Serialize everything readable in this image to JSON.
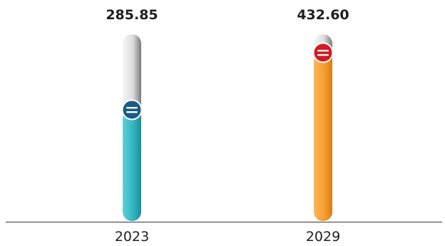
{
  "chart_data": {
    "type": "bar",
    "categories": [
      "2023",
      "2029"
    ],
    "values": [
      285.85,
      432.6
    ],
    "value_labels": [
      "285.85",
      "432.60"
    ],
    "ylim": [
      0,
      480
    ],
    "bar_colors": [
      "#2eb3bd",
      "#f49b2a"
    ],
    "knob_colors": [
      "#1b5b86",
      "#d21a23"
    ],
    "track_color": "#e9e9e9",
    "grid": false
  }
}
